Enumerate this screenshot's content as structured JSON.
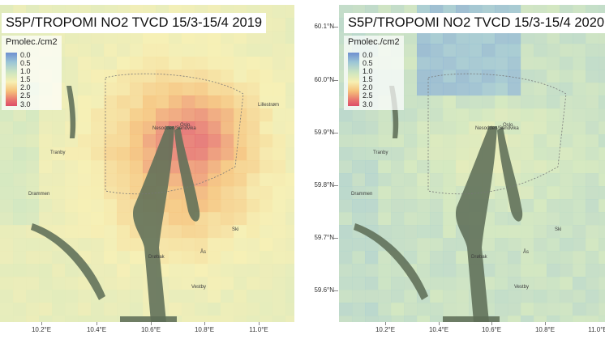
{
  "panels": [
    {
      "title": "S5P/TROPOMI NO2 TVCD 15/3-15/4 2019",
      "legend_title": "Pmolec./cm2",
      "legend_ticks": [
        "0.0",
        "0.5",
        "1.0",
        "1.5",
        "2.0",
        "2.5",
        "3.0"
      ],
      "scenario": "high"
    },
    {
      "title": "S5P/TROPOMI NO2 TVCD 15/3-15/4 2020",
      "legend_title": "Pmolec./cm2",
      "legend_ticks": [
        "0.0",
        "0.5",
        "1.0",
        "1.5",
        "2.0",
        "2.5",
        "3.0"
      ],
      "scenario": "low"
    }
  ],
  "y_axis_labels": [
    "60.1°N",
    "60.0°N",
    "59.9°N",
    "59.8°N",
    "59.7°N",
    "59.6°N"
  ],
  "x_axis_labels": [
    "10.2°E",
    "10.4°E",
    "10.6°E",
    "10.8°E",
    "11.0°E"
  ],
  "place_names": [
    "Oslo",
    "Lillestrøm",
    "Nesodden/Sandvika",
    "Tranby",
    "Drammen",
    "Drøbak",
    "Ås",
    "Ski",
    "Vestby"
  ],
  "colors": {
    "low": "#6f8fd0",
    "mid": "#f7efb2",
    "high": "#de4e68",
    "water": "#5e6e58",
    "land": "#f2f1c6"
  }
}
